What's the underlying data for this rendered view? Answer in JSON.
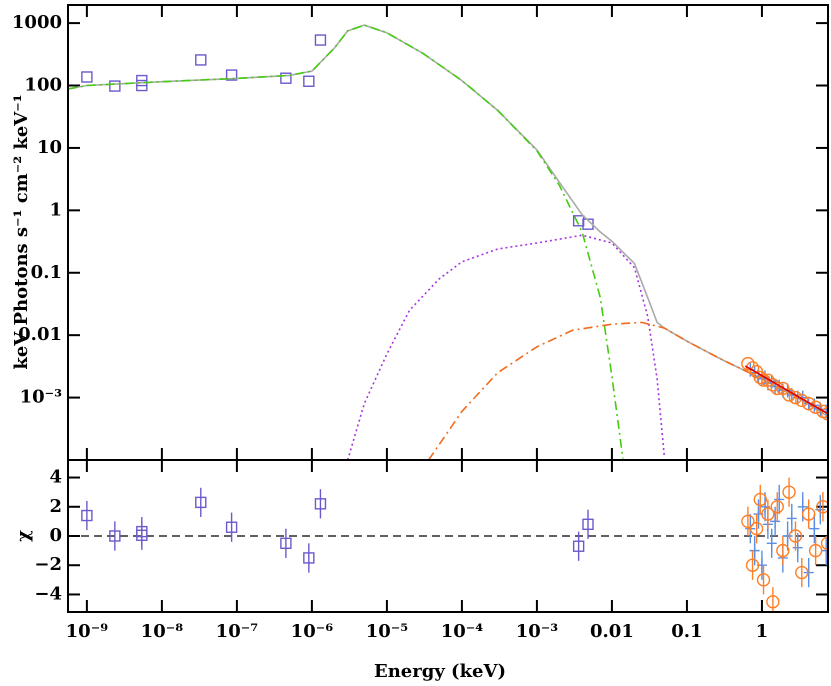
{
  "chart_data": [
    {
      "type": "scatter",
      "ylabel": "keV Photons s⁻¹ cm⁻² keV⁻¹",
      "xlog": true,
      "ylog": true,
      "xlim": [
        5.6e-10,
        7.6
      ],
      "ylim": [
        0.0001,
        1950
      ],
      "yticks": [
        {
          "value": 0.001,
          "label": "10⁻³"
        },
        0.01,
        0.1,
        1,
        10,
        100,
        1000
      ],
      "series": [
        {
          "color": "#6a5acd",
          "marker": "square",
          "line": "none",
          "x": [
            1e-09,
            2.36e-09,
            5.4e-09,
            5.4e-09,
            3.3e-08,
            8.5e-08,
            4.5e-07,
            9.1e-07,
            1.3e-06,
            0.0036,
            0.0048
          ],
          "values": [
            137,
            98,
            120,
            100,
            257,
            147,
            131,
            117,
            535,
            0.68,
            0.6
          ]
        },
        {
          "color": "#aaaaaa",
          "marker": "none",
          "line": "solid",
          "x": [
            5.6e-10,
            1e-09,
            1e-08,
            1e-07,
            5e-07,
            1e-06,
            2e-06,
            3e-06,
            5e-06,
            1e-05,
            3e-05,
            0.0001,
            0.0003,
            0.001,
            0.002,
            0.004,
            0.007,
            0.01,
            0.02,
            0.03,
            0.04,
            0.05,
            0.1,
            0.3,
            1,
            3,
            7.6
          ],
          "values": [
            88,
            100,
            115,
            130,
            145,
            170,
            400,
            750,
            930,
            700,
            330,
            120,
            40,
            9.3,
            2.8,
            0.85,
            0.45,
            0.32,
            0.14,
            0.04,
            0.016,
            0.013,
            0.008,
            0.004,
            0.002,
            0.001,
            0.0005
          ]
        },
        {
          "color": "#44cc11",
          "marker": "none",
          "line": "dashdot",
          "x": [
            5.6e-10,
            1e-09,
            1e-08,
            1e-07,
            5e-07,
            1e-06,
            2e-06,
            3e-06,
            5e-06,
            1e-05,
            3e-05,
            0.0001,
            0.0003,
            0.001,
            0.002,
            0.004,
            0.007,
            0.01,
            0.014
          ],
          "values": [
            88,
            100,
            115,
            130,
            145,
            170,
            400,
            750,
            930,
            700,
            330,
            120,
            40,
            9,
            2.5,
            0.45,
            0.04,
            0.0022,
            0.000105
          ]
        },
        {
          "color": "#a733e6",
          "marker": "none",
          "line": "dotted",
          "x": [
            3e-06,
            5e-06,
            1e-05,
            2e-05,
            5e-05,
            0.0001,
            0.0003,
            0.001,
            0.004,
            0.01,
            0.02,
            0.03,
            0.04,
            0.05
          ],
          "values": [
            0.0001,
            0.0008,
            0.005,
            0.025,
            0.08,
            0.15,
            0.24,
            0.3,
            0.4,
            0.3,
            0.12,
            0.02,
            0.002,
            0.00011
          ]
        },
        {
          "color": "#f26b1d",
          "marker": "none",
          "line": "dashdot",
          "x": [
            3.6e-05,
            0.0001,
            0.0003,
            0.001,
            0.003,
            0.01,
            0.025,
            0.05,
            0.1,
            0.3,
            1,
            3,
            7.6
          ],
          "values": [
            0.0001,
            0.0006,
            0.0025,
            0.0065,
            0.012,
            0.015,
            0.016,
            0.013,
            0.008,
            0.004,
            0.002,
            0.001,
            0.0005
          ]
        },
        {
          "color": "#5b8ee6",
          "marker": "cross",
          "line": "none",
          "x": [
            0.7,
            0.8,
            0.9,
            1.0,
            1.1,
            1.2,
            1.35,
            1.5,
            1.7,
            1.9,
            2.2,
            2.5,
            3,
            3.5,
            4.2,
            5,
            6,
            7.2
          ],
          "values": [
            0.0028,
            0.0025,
            0.0022,
            0.002,
            0.0021,
            0.0017,
            0.0018,
            0.0015,
            0.0015,
            0.0013,
            0.0013,
            0.0011,
            0.001,
            0.001,
            0.0008,
            0.00075,
            0.00065,
            0.0006
          ]
        },
        {
          "color": "#ff7f27",
          "marker": "circle",
          "line": "none",
          "x": [
            0.65,
            0.75,
            0.85,
            0.95,
            1.05,
            1.2,
            1.4,
            1.6,
            1.9,
            2.3,
            2.8,
            3.4,
            4.2,
            5.2,
            6.5,
            7.5
          ],
          "values": [
            0.0035,
            0.003,
            0.0026,
            0.0021,
            0.0019,
            0.0019,
            0.0016,
            0.0014,
            0.0014,
            0.0011,
            0.001,
            0.0009,
            0.0008,
            0.0007,
            0.0006,
            0.00055
          ]
        },
        {
          "color": "#e00000",
          "marker": "none",
          "line": "solid",
          "x": [
            0.6,
            7.6
          ],
          "values": [
            0.0032,
            0.00055
          ]
        }
      ]
    },
    {
      "type": "scatter",
      "ylabel": "χ",
      "xlabel": "Energy (keV)",
      "xlog": true,
      "ylog": false,
      "xlim": [
        5.6e-10,
        7.6
      ],
      "ylim": [
        -5.2,
        5.2
      ],
      "xticks": [
        {
          "value": 1e-09,
          "label": "10⁻⁹"
        },
        {
          "value": 1e-08,
          "label": "10⁻⁸"
        },
        {
          "value": 1e-07,
          "label": "10⁻⁷"
        },
        {
          "value": 1e-06,
          "label": "10⁻⁶"
        },
        {
          "value": 1e-05,
          "label": "10⁻⁵"
        },
        {
          "value": 0.0001,
          "label": "10⁻⁴"
        },
        {
          "value": 0.001,
          "label": "10⁻³"
        },
        0.01,
        0.1,
        1
      ],
      "yticks": [
        {
          "value": -4,
          "label": "−4"
        },
        {
          "value": -2,
          "label": "−2"
        },
        0,
        2,
        4
      ],
      "zero_line": true,
      "series": [
        {
          "color": "#6a5acd",
          "marker": "square",
          "line": "none",
          "yerr": 1,
          "x": [
            1e-09,
            2.36e-09,
            5.4e-09,
            5.4e-09,
            3.3e-08,
            8.5e-08,
            4.5e-07,
            9.1e-07,
            1.3e-06,
            0.0036,
            0.0048
          ],
          "values": [
            1.4,
            0,
            0.3,
            0.05,
            2.3,
            0.6,
            -0.5,
            -1.5,
            2.2,
            -0.7,
            0.8
          ]
        },
        {
          "color": "#5b8ee6",
          "marker": "cross",
          "line": "none",
          "yerr": 1,
          "x": [
            0.7,
            0.8,
            0.9,
            1.0,
            1.1,
            1.2,
            1.35,
            1.5,
            1.7,
            1.9,
            2.2,
            2.5,
            3,
            3.5,
            4.2,
            5,
            6,
            7.2
          ],
          "values": [
            0.5,
            -1,
            1.5,
            -2,
            2,
            0.8,
            -0.5,
            1,
            2.5,
            -1.5,
            0,
            1.2,
            -0.8,
            2,
            -2.5,
            0.5,
            1.8,
            -1
          ]
        },
        {
          "color": "#ff7f27",
          "marker": "circle",
          "line": "none",
          "yerr": 1,
          "x": [
            0.65,
            0.75,
            0.85,
            0.95,
            1.05,
            1.2,
            1.4,
            1.6,
            1.9,
            2.3,
            2.8,
            3.4,
            4.2,
            5.2,
            6.5,
            7.5
          ],
          "values": [
            1,
            -2,
            0.5,
            2.5,
            -3,
            1.5,
            -4.5,
            2,
            -1,
            3,
            0,
            -2.5,
            1.5,
            -1,
            2,
            -0.5
          ]
        }
      ]
    }
  ]
}
